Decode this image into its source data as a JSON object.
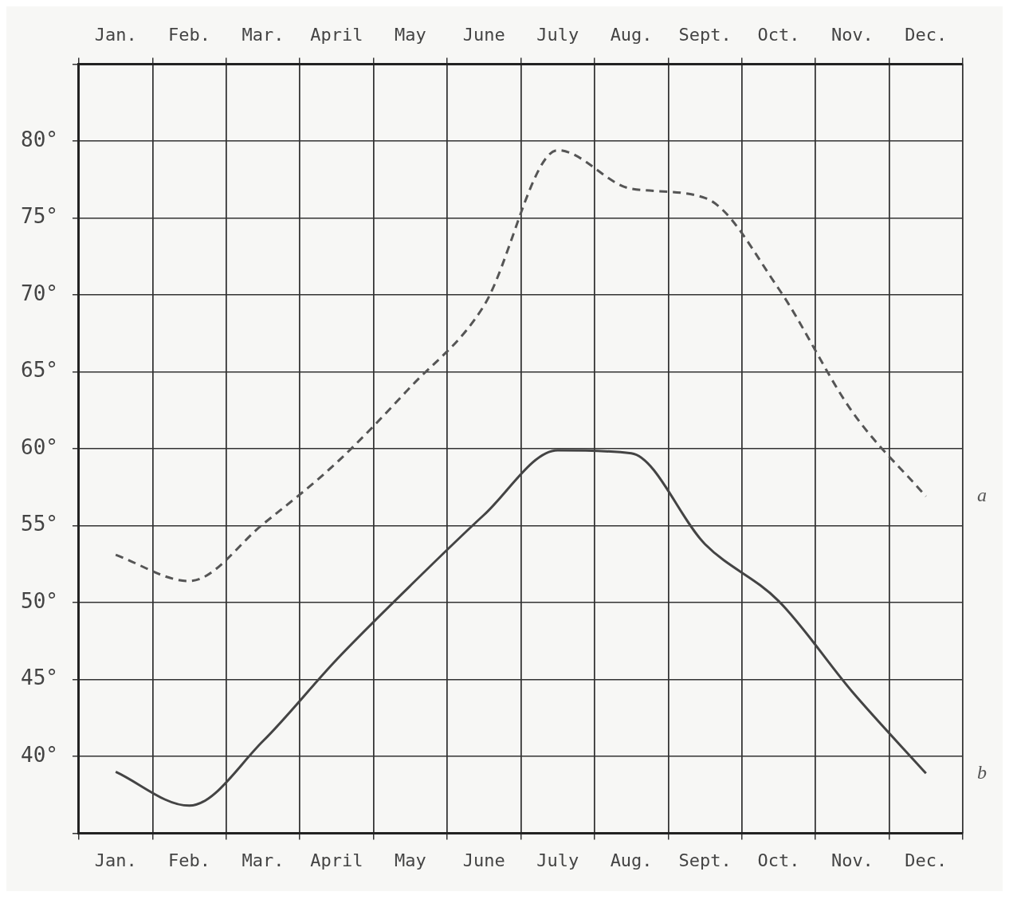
{
  "chart_data": {
    "type": "line",
    "categories": [
      "Jan.",
      "Feb.",
      "Mar.",
      "April",
      "May",
      "June",
      "July",
      "Aug.",
      "Sept.",
      "Oct.",
      "Nov.",
      "Dec."
    ],
    "ylim": [
      35,
      85
    ],
    "yticks": [
      {
        "value": 35,
        "label": null
      },
      {
        "value": 40,
        "label": "40°"
      },
      {
        "value": 45,
        "label": "45°"
      },
      {
        "value": 50,
        "label": "50°"
      },
      {
        "value": 55,
        "label": "55°"
      },
      {
        "value": 60,
        "label": "60°"
      },
      {
        "value": 65,
        "label": "65°"
      },
      {
        "value": 70,
        "label": "70°"
      },
      {
        "value": 75,
        "label": "75°"
      },
      {
        "value": 80,
        "label": "80°"
      },
      {
        "value": 85,
        "label": null
      }
    ],
    "grid": true,
    "legend": false,
    "marker": "none",
    "series": [
      {
        "name": "a",
        "color": "#555555",
        "line_style": "dashed",
        "values": [
          53.1,
          51.4,
          55.1,
          59.1,
          64.0,
          69.3,
          79.4,
          76.9,
          76.3,
          70.4,
          62.4,
          56.9
        ]
      },
      {
        "name": "b",
        "color": "#444444",
        "line_style": "solid",
        "values": [
          39.0,
          36.8,
          41.0,
          46.3,
          51.1,
          55.7,
          59.9,
          59.7,
          53.8,
          50.1,
          44.2,
          38.9
        ]
      }
    ]
  }
}
